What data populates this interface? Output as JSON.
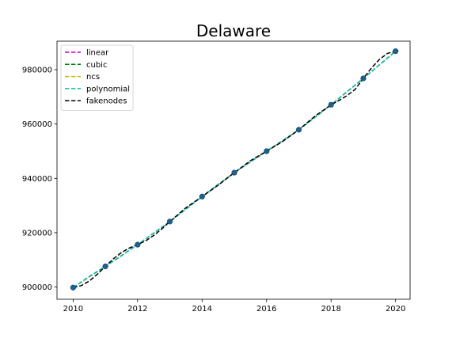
{
  "chart_data": {
    "type": "line",
    "title": "Delaware",
    "xlabel": "",
    "ylabel": "",
    "xlim": [
      2009.5,
      2020.45
    ],
    "ylim": [
      895500,
      990500
    ],
    "x_ticks": [
      2010,
      2012,
      2014,
      2016,
      2018,
      2020
    ],
    "y_ticks": [
      900000,
      920000,
      940000,
      960000,
      980000
    ],
    "legend_position": "top-left",
    "grid": false,
    "data_points": {
      "x": [
        2010,
        2011,
        2012,
        2013,
        2014,
        2015,
        2016,
        2017,
        2018,
        2019,
        2020
      ],
      "y": [
        899800,
        907600,
        915600,
        924100,
        933300,
        942100,
        950000,
        957900,
        967100,
        976800,
        986800
      ],
      "color": "#1f5f8b"
    },
    "series": [
      {
        "name": "linear",
        "color": "#bf00bf",
        "dash": "dashed",
        "x": [
          2010,
          2011,
          2012,
          2013,
          2014,
          2015,
          2016,
          2017,
          2018,
          2019,
          2020
        ],
        "y": [
          899800,
          907600,
          915600,
          924100,
          933300,
          942100,
          950000,
          957900,
          967100,
          976800,
          986800
        ]
      },
      {
        "name": "cubic",
        "color": "#008000",
        "dash": "dashed",
        "x": [
          2010,
          2010.5,
          2011,
          2011.5,
          2012,
          2012.5,
          2013,
          2013.5,
          2014,
          2014.5,
          2015,
          2015.5,
          2016,
          2016.5,
          2017,
          2017.5,
          2018,
          2018.5,
          2019,
          2019.5,
          2020
        ],
        "y": [
          899800,
          903800,
          907600,
          911600,
          915600,
          919800,
          924100,
          928700,
          933300,
          937800,
          942100,
          946200,
          950000,
          953900,
          957900,
          962400,
          967100,
          971900,
          976800,
          981800,
          986800
        ]
      },
      {
        "name": "ncs",
        "color": "#bfbf00",
        "dash": "dashed",
        "x": [
          2010,
          2010.5,
          2011,
          2011.5,
          2012,
          2012.5,
          2013,
          2013.5,
          2014,
          2014.5,
          2015,
          2015.5,
          2016,
          2016.5,
          2017,
          2017.5,
          2018,
          2018.5,
          2019,
          2019.5,
          2020
        ],
        "y": [
          899800,
          903750,
          907600,
          911600,
          915600,
          919800,
          924100,
          928700,
          933300,
          937800,
          942100,
          946200,
          950000,
          953900,
          957900,
          962400,
          967100,
          971900,
          976800,
          981850,
          986800
        ]
      },
      {
        "name": "polynomial",
        "color": "#00bfbf",
        "dash": "dashed",
        "x": [
          2010,
          2010.5,
          2011,
          2011.5,
          2012,
          2012.5,
          2013,
          2013.5,
          2014,
          2014.5,
          2015,
          2015.5,
          2016,
          2016.5,
          2017,
          2017.5,
          2018,
          2018.5,
          2019,
          2019.5,
          2020
        ],
        "y": [
          899800,
          903900,
          907600,
          911500,
          915600,
          919900,
          924100,
          928700,
          933300,
          937800,
          942100,
          946100,
          950000,
          953900,
          957900,
          962500,
          967100,
          972000,
          976800,
          981800,
          986800
        ]
      },
      {
        "name": "fakenodes",
        "color": "#000000",
        "dash": "dashed",
        "x": [
          2010,
          2010.25,
          2010.5,
          2010.75,
          2011,
          2011.25,
          2011.5,
          2011.75,
          2012,
          2012.25,
          2012.5,
          2012.75,
          2013,
          2013.5,
          2014,
          2014.5,
          2015,
          2015.5,
          2016,
          2016.5,
          2017,
          2017.5,
          2018,
          2018.25,
          2018.5,
          2018.75,
          2019,
          2019.25,
          2019.5,
          2019.75,
          2020
        ],
        "y": [
          899800,
          900500,
          902200,
          904700,
          907600,
          910400,
          912700,
          914400,
          915600,
          917000,
          919000,
          921400,
          924100,
          929200,
          933300,
          937500,
          942100,
          946500,
          950000,
          953600,
          957900,
          962900,
          967100,
          968700,
          970500,
          972800,
          976800,
          980600,
          983800,
          986000,
          986800
        ]
      }
    ]
  }
}
